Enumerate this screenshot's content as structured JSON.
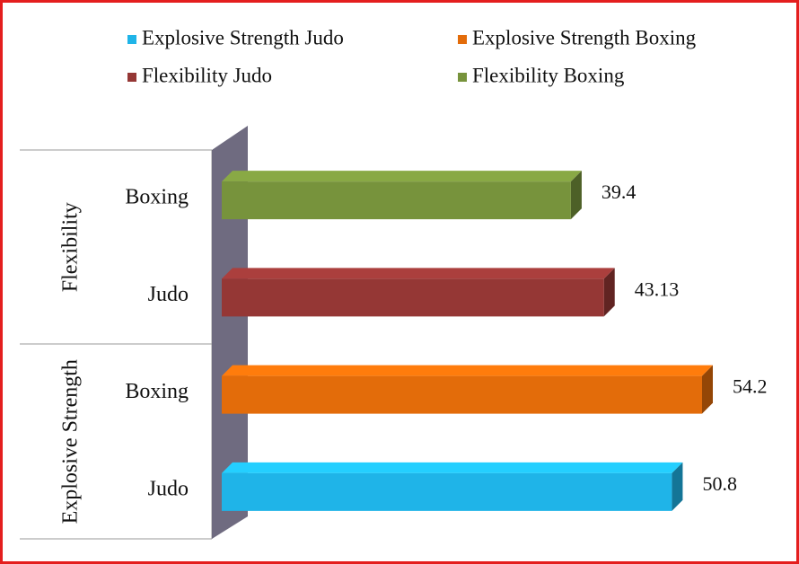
{
  "chart_data": {
    "type": "bar",
    "orientation": "horizontal",
    "groups": [
      {
        "name": "Explosive Strength",
        "categories": [
          "Judo",
          "Boxing"
        ]
      },
      {
        "name": "Flexibility",
        "categories": [
          "Judo",
          "Boxing"
        ]
      }
    ],
    "series": [
      {
        "name": "Explosive Strength Judo",
        "color": "#1fb4e8",
        "values": [
          50.8,
          null,
          null,
          null
        ]
      },
      {
        "name": "Explosive Strength Boxing",
        "color": "#e36c0a",
        "values": [
          null,
          54.2,
          null,
          null
        ]
      },
      {
        "name": "Flexibility Judo",
        "color": "#953735",
        "values": [
          null,
          null,
          43.13,
          null
        ]
      },
      {
        "name": "Flexibility Boxing",
        "color": "#77933c",
        "values": [
          null,
          null,
          null,
          39.4
        ]
      }
    ]
  }
}
